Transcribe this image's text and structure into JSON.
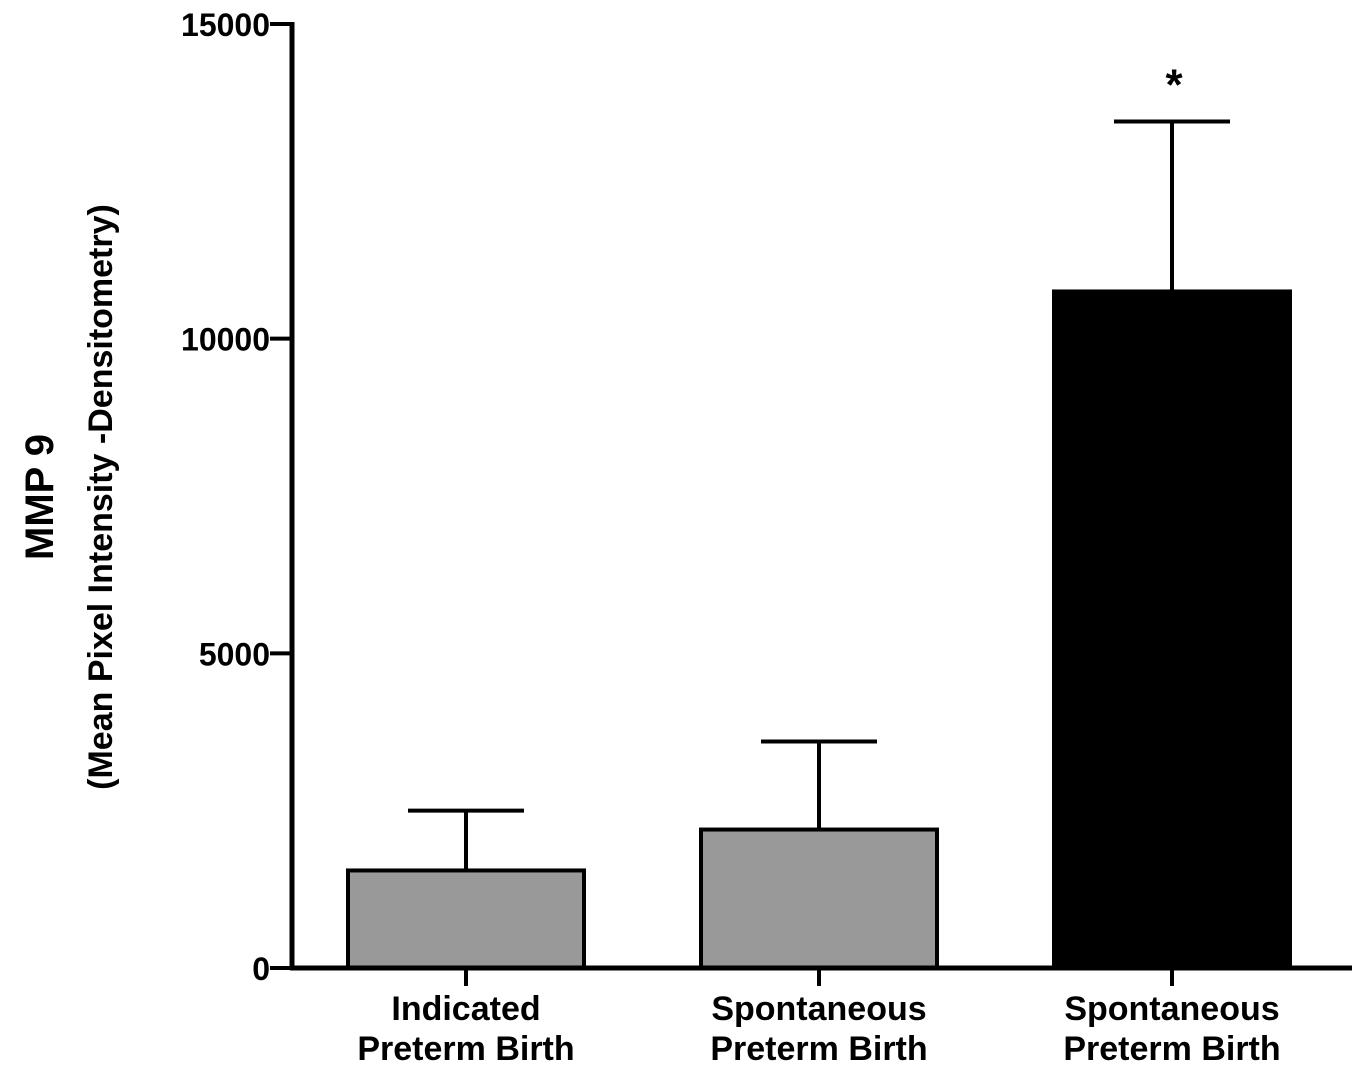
{
  "chart_data": {
    "type": "bar",
    "categories": [
      [
        "Indicated",
        "Preterm Birth"
      ],
      [
        "Spontaneous",
        "Preterm Birth"
      ],
      [
        "Spontaneous",
        "Preterm Birth"
      ]
    ],
    "values": [
      1550,
      2200,
      10750
    ],
    "error_upper": [
      2500,
      3600,
      13450
    ],
    "bar_colors": [
      "#999999",
      "#999999",
      "#000000"
    ],
    "annotations": [
      "",
      "",
      "*"
    ],
    "ylabel": "MMP 9",
    "ylabel_sub": "(Mean Pixel Intensity -Densitometry)",
    "xlabel": "",
    "ylim": [
      0,
      15000
    ],
    "yticks": [
      0,
      5000,
      10000,
      15000
    ],
    "ytick_labels": [
      "0",
      "5000",
      "10000",
      "15000"
    ],
    "grid": false,
    "legend": "none"
  }
}
